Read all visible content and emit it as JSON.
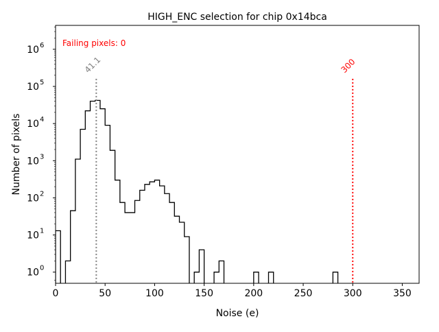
{
  "chart_data": {
    "type": "histogram",
    "title": "HIGH_ENC selection for chip 0x14bca",
    "xlabel": "Noise (e)",
    "ylabel": "Number of pixels",
    "xlim": [
      0,
      367
    ],
    "ylim": [
      0.5,
      4400000
    ],
    "yscale": "log",
    "bin_width": 5,
    "bin_start": 0,
    "counts": [
      13,
      0,
      2,
      45,
      1100,
      7000,
      22000,
      40000,
      42000,
      25000,
      9000,
      1900,
      300,
      75,
      40,
      40,
      85,
      160,
      230,
      270,
      300,
      210,
      130,
      75,
      32,
      22,
      9,
      0,
      1,
      4,
      0,
      0,
      1,
      2,
      0,
      0,
      0,
      0,
      0,
      0,
      1,
      0,
      0,
      1,
      0,
      0,
      0,
      0,
      0,
      0,
      0,
      0,
      0,
      0,
      0,
      0,
      1
    ],
    "xticks": [
      "0",
      "50",
      "100",
      "150",
      "200",
      "250",
      "300",
      "350"
    ],
    "xtick_values": [
      0,
      50,
      100,
      150,
      200,
      250,
      300,
      350
    ],
    "yticks": [
      "10^0",
      "10^1",
      "10^2",
      "10^3",
      "10^4",
      "10^5",
      "10^6"
    ],
    "annotations": {
      "failing": "Failing pixels: 0",
      "mean_label": "41.1",
      "mean_value": 41.1,
      "threshold_label": "300",
      "threshold_value": 300
    },
    "colors": {
      "hist": "#000000",
      "mean": "#808080",
      "threshold": "#ff0000"
    }
  }
}
